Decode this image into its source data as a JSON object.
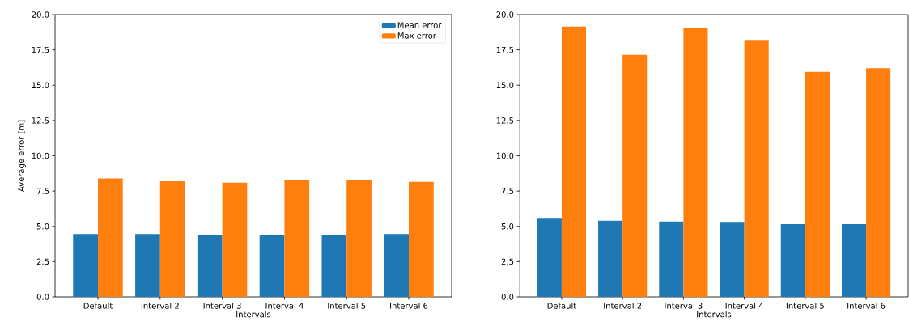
{
  "chart_data": [
    {
      "type": "bar",
      "xlabel": "Intervals",
      "ylabel": "Average error [m]",
      "categories": [
        "Default",
        "Interval 2",
        "Interval 3",
        "Interval 4",
        "Interval 5",
        "Interval 6"
      ],
      "series": [
        {
          "name": "Mean error",
          "color": "#1f77b4",
          "values": [
            4.45,
            4.45,
            4.4,
            4.4,
            4.4,
            4.45
          ]
        },
        {
          "name": "Max error",
          "color": "#ff7f0e",
          "values": [
            8.4,
            8.2,
            8.1,
            8.3,
            8.3,
            8.15
          ]
        }
      ],
      "ylim": [
        0,
        20
      ],
      "yticks": [
        {
          "value": 0,
          "label": "0.0"
        },
        {
          "value": 2.5,
          "label": "2.5"
        },
        {
          "value": 5,
          "label": "5.0"
        },
        {
          "value": 7.5,
          "label": "7.5"
        },
        {
          "value": 10,
          "label": "10.0"
        },
        {
          "value": 12.5,
          "label": "12.5"
        },
        {
          "value": 15,
          "label": "15.0"
        },
        {
          "value": 17.5,
          "label": "17.5"
        },
        {
          "value": 20,
          "label": "20.0"
        }
      ],
      "legend": "top right"
    },
    {
      "type": "bar",
      "xlabel": "Intervals",
      "categories": [
        "Default",
        "Interval 2",
        "Interval 3",
        "Interval 4",
        "Interval 5",
        "Interval 6"
      ],
      "series": [
        {
          "color": "#1f77b4",
          "values": [
            5.55,
            5.4,
            5.35,
            5.25,
            5.15,
            5.15
          ]
        },
        {
          "color": "#ff7f0e",
          "values": [
            19.15,
            17.15,
            19.05,
            18.15,
            15.95,
            16.2
          ]
        }
      ],
      "ylim": [
        0,
        20
      ],
      "yticks": [
        {
          "value": 0,
          "label": "0.0"
        },
        {
          "value": 2.5,
          "label": "2.5"
        },
        {
          "value": 5,
          "label": "5.0"
        },
        {
          "value": 7.5,
          "label": "7.5"
        },
        {
          "value": 10,
          "label": "10.0"
        },
        {
          "value": 12.5,
          "label": "12.5"
        },
        {
          "value": 15,
          "label": "15.0"
        },
        {
          "value": 17.5,
          "label": "17.5"
        },
        {
          "value": 20,
          "label": "20.0"
        }
      ]
    }
  ]
}
